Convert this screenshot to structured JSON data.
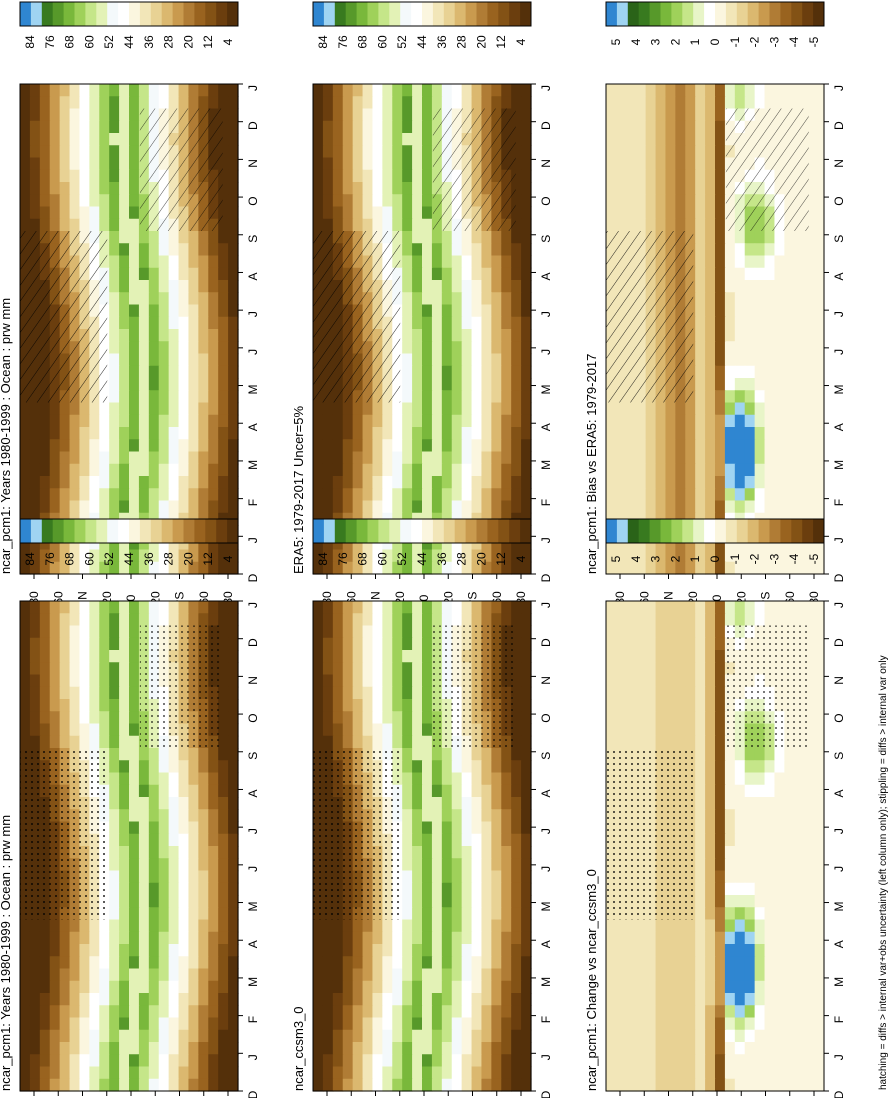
{
  "footnote": "hatching = diffs > internal var+obs uncertainty (left column only); stippling = diffs > internal var only",
  "colors": {
    "prw": [
      "#54300a",
      "#6b3e0e",
      "#835215",
      "#99631f",
      "#b07c35",
      "#c99a4e",
      "#dbb86f",
      "#e8d294",
      "#f2e6b8",
      "#fbf6df",
      "#ffffff",
      "#f4f9fb",
      "#e3f2b6",
      "#c5e689",
      "#9fd15a",
      "#79b83b",
      "#57992a",
      "#387a1f",
      "#9fd4f2",
      "#2f86d1"
    ],
    "diff": [
      "#54300a",
      "#6b3e0e",
      "#835215",
      "#99631f",
      "#b07c35",
      "#c99a4e",
      "#dbb86f",
      "#e8d294",
      "#f2e6b8",
      "#fbf6df",
      "#ffffff",
      "#e8f5c8",
      "#c5e689",
      "#9fd15a",
      "#79b83b",
      "#57992a",
      "#387a1f",
      "#2a6318",
      "#9fd4f2",
      "#2f86d1"
    ]
  },
  "chart_data": [
    {
      "type": "heatmap",
      "title": "ncar_pcm1: Years 1980-1999 : Ocean : prw mm",
      "x": [
        "D",
        "J",
        "F",
        "M",
        "A",
        "M",
        "J",
        "J",
        "A",
        "S",
        "O",
        "N",
        "D",
        "J"
      ],
      "y": [
        "80",
        "60",
        "°N",
        "20",
        "0",
        "20",
        "°S",
        "60",
        "80"
      ],
      "colorbar": [
        "84",
        "76",
        "68",
        "60",
        "52",
        "44",
        "36",
        "28",
        "20",
        "12",
        "4"
      ],
      "field": "prw",
      "overlay": "hatch"
    },
    {
      "type": "heatmap",
      "title": "ncar_pcm1: Years 1980-1999 : Ocean : prw mm",
      "x": [
        "D",
        "J",
        "F",
        "M",
        "A",
        "M",
        "J",
        "J",
        "A",
        "S",
        "O",
        "N",
        "D",
        "J"
      ],
      "y": [
        "80",
        "60",
        "°N",
        "20",
        "0",
        "20",
        "°S",
        "60",
        "80"
      ],
      "colorbar": [
        "84",
        "76",
        "68",
        "60",
        "52",
        "44",
        "36",
        "28",
        "20",
        "12",
        "4"
      ],
      "field": "prw",
      "overlay": "stipple"
    },
    {
      "type": "heatmap",
      "title": "ERA5: 1979-2017 Uncer=5%",
      "x": [
        "D",
        "J",
        "F",
        "M",
        "A",
        "M",
        "J",
        "J",
        "A",
        "S",
        "O",
        "N",
        "D",
        "J"
      ],
      "y": [
        "80",
        "60",
        "°N",
        "20",
        "0",
        "20",
        "°S",
        "60",
        "80"
      ],
      "colorbar": [
        "84",
        "76",
        "68",
        "60",
        "52",
        "44",
        "36",
        "28",
        "20",
        "12",
        "4"
      ],
      "field": "prw",
      "overlay": "hatch"
    },
    {
      "type": "heatmap",
      "title": "ncar_ccsm3_0",
      "x": [
        "D",
        "J",
        "F",
        "M",
        "A",
        "M",
        "J",
        "J",
        "A",
        "S",
        "O",
        "N",
        "D",
        "J"
      ],
      "y": [
        "80",
        "60",
        "°N",
        "20",
        "0",
        "20",
        "°S",
        "60",
        "80"
      ],
      "colorbar": [
        "84",
        "76",
        "68",
        "60",
        "52",
        "44",
        "36",
        "28",
        "20",
        "12",
        "4"
      ],
      "field": "prw",
      "overlay": "stipple"
    },
    {
      "type": "heatmap",
      "title": "ncar_pcm1: Bias vs ERA5: 1979-2017",
      "x": [
        "D",
        "J",
        "F",
        "M",
        "A",
        "M",
        "J",
        "J",
        "A",
        "S",
        "O",
        "N",
        "D",
        "J"
      ],
      "y": [
        "80",
        "60",
        "°N",
        "20",
        "0",
        "20",
        "°S",
        "60",
        "80"
      ],
      "colorbar": [
        "5",
        "4",
        "3",
        "2",
        "1",
        "0",
        "-1",
        "-2",
        "-3",
        "-4",
        "-5"
      ],
      "field": "diff",
      "overlay": "hatch"
    },
    {
      "type": "heatmap",
      "title": "ncar_pcm1: Change vs ncar_ccsm3_0",
      "x": [
        "D",
        "J",
        "F",
        "M",
        "A",
        "M",
        "J",
        "J",
        "A",
        "S",
        "O",
        "N",
        "D",
        "J"
      ],
      "y": [
        "80",
        "60",
        "°N",
        "20",
        "0",
        "20",
        "°S",
        "60",
        "80"
      ],
      "colorbar": [
        "5",
        "4",
        "3",
        "2",
        "1",
        "0",
        "-1",
        "-2",
        "-3",
        "-4",
        "-5"
      ],
      "field": "diff",
      "overlay": "stipple"
    }
  ]
}
